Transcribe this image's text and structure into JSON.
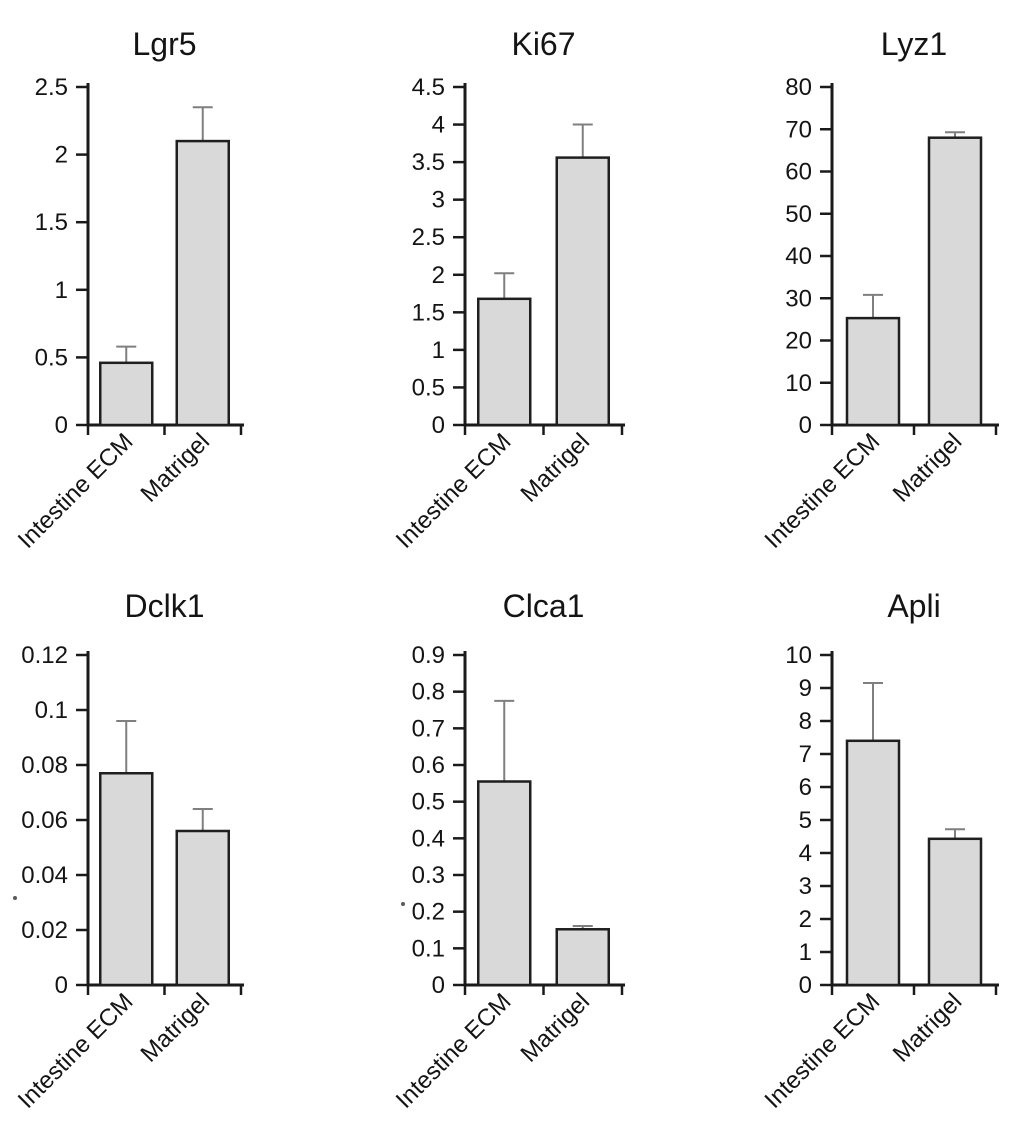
{
  "figure": {
    "background": "#ffffff",
    "bar_fill": "#d9d9d9",
    "bar_border": "#1f1f1f",
    "error_color": "#7f7f7f",
    "axis_color": "#1a1a1a",
    "text_color": "#141414"
  },
  "chart_data": [
    {
      "type": "bar",
      "title": "Lgr5",
      "categories": [
        "Intestine ECM",
        "Matrigel"
      ],
      "values": [
        0.46,
        2.1
      ],
      "errors_plus": [
        0.12,
        0.25
      ],
      "ylim": [
        0,
        2.5
      ],
      "yticks": [
        "0",
        "0.5",
        "1",
        "1.5",
        "2",
        "2.5"
      ],
      "grid": false,
      "legend": "none",
      "xlabel": "",
      "ylabel": ""
    },
    {
      "type": "bar",
      "title": "Ki67",
      "categories": [
        "Intestine ECM",
        "Matrigel"
      ],
      "values": [
        1.68,
        3.56
      ],
      "errors_plus": [
        0.34,
        0.44
      ],
      "ylim": [
        0,
        4.5
      ],
      "yticks": [
        "0",
        "0.5",
        "1",
        "1.5",
        "2",
        "2.5",
        "3",
        "3.5",
        "4",
        "4.5"
      ],
      "grid": false,
      "legend": "none",
      "xlabel": "",
      "ylabel": ""
    },
    {
      "type": "bar",
      "title": "Lyz1",
      "categories": [
        "Intestine ECM",
        "Matrigel"
      ],
      "values": [
        25.3,
        68
      ],
      "errors_plus": [
        5.5,
        1.3
      ],
      "ylim": [
        0,
        80
      ],
      "yticks": [
        "0",
        "10",
        "20",
        "30",
        "40",
        "50",
        "60",
        "70",
        "80"
      ],
      "grid": false,
      "legend": "none",
      "xlabel": "",
      "ylabel": ""
    },
    {
      "type": "bar",
      "title": "Dclk1",
      "categories": [
        "Intestine ECM",
        "Matrigel"
      ],
      "values": [
        0.077,
        0.056
      ],
      "errors_plus": [
        0.019,
        0.008
      ],
      "ylim": [
        0,
        0.12
      ],
      "yticks": [
        "0",
        "0.02",
        "0.04",
        "0.06",
        "0.08",
        "0.1",
        "0.12"
      ],
      "grid": false,
      "legend": "none",
      "xlabel": "",
      "ylabel": ""
    },
    {
      "type": "bar",
      "title": "Clca1",
      "categories": [
        "Intestine ECM",
        "Matrigel"
      ],
      "values": [
        0.555,
        0.152
      ],
      "errors_plus": [
        0.22,
        0.009
      ],
      "ylim": [
        0,
        0.9
      ],
      "yticks": [
        "0",
        "0.1",
        "0.2",
        "0.3",
        "0.4",
        "0.5",
        "0.6",
        "0.7",
        "0.8",
        "0.9"
      ],
      "grid": false,
      "legend": "none",
      "xlabel": "",
      "ylabel": ""
    },
    {
      "type": "bar",
      "title": "Apli",
      "categories": [
        "Intestine ECM",
        "Matrigel"
      ],
      "values": [
        7.4,
        4.43
      ],
      "errors_plus": [
        1.75,
        0.29
      ],
      "ylim": [
        0,
        10
      ],
      "yticks": [
        "0",
        "1",
        "2",
        "3",
        "4",
        "5",
        "6",
        "7",
        "8",
        "9",
        "10"
      ],
      "grid": false,
      "legend": "none",
      "xlabel": "",
      "ylabel": ""
    }
  ]
}
